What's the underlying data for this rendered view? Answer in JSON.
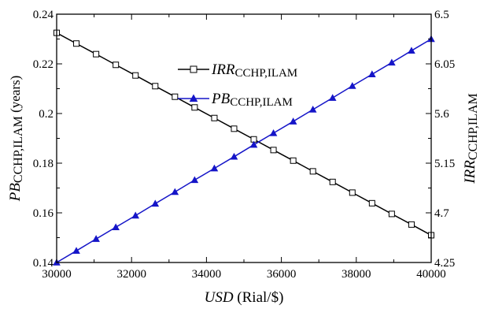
{
  "chart_data": {
    "type": "line",
    "x": [
      30000,
      30526,
      31053,
      31579,
      32105,
      32632,
      33158,
      33684,
      34211,
      34737,
      35263,
      35789,
      36316,
      36842,
      37368,
      37895,
      38421,
      38947,
      39474,
      40000
    ],
    "xlim": [
      30000,
      40000
    ],
    "xticks": [
      "30000",
      "32000",
      "34000",
      "36000",
      "38000",
      "40000"
    ],
    "xlabel": {
      "italic": "USD",
      "unit": "(Rial/$)"
    },
    "y_left": {
      "lim": [
        0.14,
        0.24
      ],
      "ticks": [
        "0.14",
        "0.16",
        "0.18",
        "0.2",
        "0.22",
        "0.24"
      ],
      "label": {
        "italic": "PB",
        "sub": "CCHP,ILAM",
        "unit": "(years)"
      }
    },
    "y_right": {
      "lim": [
        4.25,
        6.5
      ],
      "ticks": [
        "4.25",
        "4.7",
        "5.15",
        "5.6",
        "6.05",
        "6.5"
      ],
      "label": {
        "italic": "IRR",
        "sub": "CCHP,ILAM"
      }
    },
    "series": [
      {
        "name": {
          "italic": "IRR",
          "sub": "CCHP,ILAM"
        },
        "axis": "right",
        "marker": "open-square",
        "color": "#000000",
        "values": [
          6.331,
          6.234,
          6.138,
          6.041,
          5.945,
          5.848,
          5.752,
          5.655,
          5.559,
          5.462,
          5.366,
          5.269,
          5.173,
          5.076,
          4.98,
          4.883,
          4.787,
          4.69,
          4.594,
          4.497
        ]
      },
      {
        "name": {
          "italic": "PB",
          "sub": "CCHP,ILAM"
        },
        "axis": "left",
        "marker": "filled-triangle",
        "color": "#1515c8",
        "values": [
          0.14,
          0.1447,
          0.1495,
          0.1542,
          0.1589,
          0.1637,
          0.1684,
          0.1732,
          0.1779,
          0.1826,
          0.1874,
          0.1921,
          0.1968,
          0.2016,
          0.2063,
          0.2111,
          0.2158,
          0.2205,
          0.2253,
          0.23
        ]
      }
    ],
    "legend": "upper-center",
    "grid": false
  }
}
